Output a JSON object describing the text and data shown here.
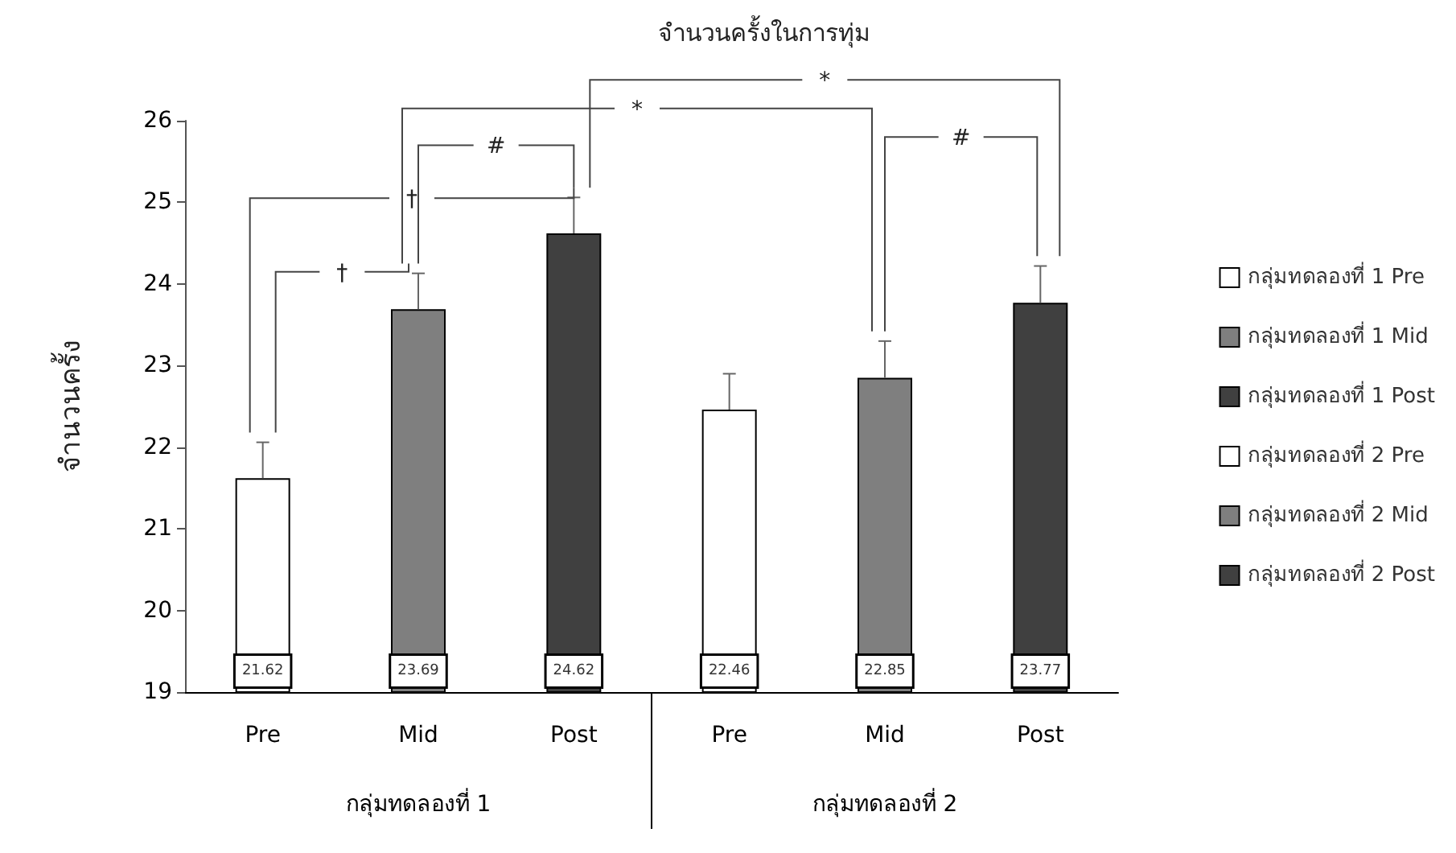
{
  "chart_data": {
    "type": "bar",
    "title": "จำนวนครั้งในการทุ่ม",
    "ylabel": "จำนวนครั้ง",
    "categories": [
      "Pre",
      "Mid",
      "Post",
      "Pre",
      "Mid",
      "Post"
    ],
    "series": [
      {
        "name": "กลุ่มทดลองที่ 1 Pre",
        "color": "#ffffff",
        "values": [
          21.62,
          null,
          null,
          null,
          null,
          null
        ],
        "errors": [
          0.44,
          null,
          null,
          null,
          null,
          null
        ]
      },
      {
        "name": "กลุ่มทดลองที่ 1 Mid",
        "color": "#7f7f7f",
        "values": [
          null,
          23.69,
          null,
          null,
          null,
          null
        ],
        "errors": [
          null,
          0.44,
          null,
          null,
          null,
          null
        ]
      },
      {
        "name": "กลุ่มทดลองที่ 1 Post",
        "color": "#404040",
        "values": [
          null,
          null,
          24.62,
          null,
          null,
          null
        ],
        "errors": [
          null,
          null,
          0.44,
          null,
          null,
          null
        ]
      },
      {
        "name": "กลุ่มทดลองที่ 2 Pre",
        "color": "#ffffff",
        "values": [
          null,
          null,
          null,
          22.46,
          null,
          null
        ],
        "errors": [
          null,
          null,
          null,
          0.44,
          null,
          null
        ]
      },
      {
        "name": "กลุ่มทดลองที่ 2 Mid",
        "color": "#7f7f7f",
        "values": [
          null,
          null,
          null,
          null,
          22.85,
          null
        ],
        "errors": [
          null,
          null,
          null,
          null,
          0.45,
          null
        ]
      },
      {
        "name": "กลุ่มทดลองที่ 2 Post",
        "color": "#404040",
        "values": [
          null,
          null,
          null,
          null,
          null,
          23.77
        ],
        "errors": [
          null,
          null,
          null,
          null,
          null,
          0.45
        ]
      }
    ],
    "ylim": [
      19,
      26
    ],
    "yticks": [
      19,
      20,
      21,
      22,
      23,
      24,
      25,
      26
    ],
    "data_labels": true,
    "grid": false,
    "legend": "right",
    "annotations": [
      "†",
      "†",
      "#",
      "*",
      "*",
      "#",
      "กลุ่มทดลองที่ 1",
      "กลุ่มทดลองที่ 2"
    ]
  }
}
